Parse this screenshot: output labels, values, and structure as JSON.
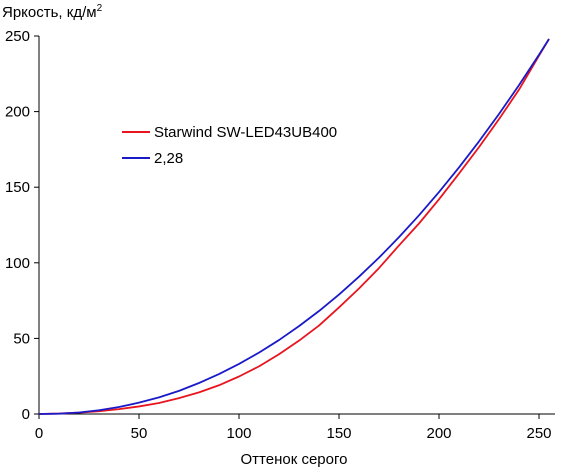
{
  "chart_data": {
    "type": "line",
    "ylabel": "Яркость, кд/м",
    "ylabel_superscript": "2",
    "xlabel": "Оттенок серого",
    "xlim": [
      0,
      255
    ],
    "ylim": [
      0,
      250
    ],
    "x_ticks": [
      "0",
      "50",
      "100",
      "150",
      "200",
      "250"
    ],
    "y_ticks": [
      "0",
      "50",
      "100",
      "150",
      "200",
      "250"
    ],
    "grid": false,
    "legend_position": "upper-left",
    "series": [
      {
        "name": "Starwind SW-LED43UB400",
        "color": "#e8141e",
        "x": [
          0,
          10,
          20,
          30,
          40,
          50,
          60,
          70,
          80,
          90,
          100,
          110,
          120,
          130,
          140,
          150,
          160,
          170,
          180,
          190,
          200,
          210,
          220,
          230,
          240,
          250,
          255
        ],
        "y": [
          0,
          0.3,
          0.9,
          1.8,
          3.2,
          5.0,
          7.3,
          10.5,
          14.3,
          19.0,
          24.8,
          31.5,
          39.5,
          48.5,
          58.5,
          70.5,
          83.0,
          96.5,
          111.5,
          126.0,
          142.0,
          159.0,
          176.5,
          195.0,
          214.5,
          237.0,
          248.0
        ]
      },
      {
        "name": "2,28",
        "color": "#1a1ac8",
        "x": [
          0,
          10,
          20,
          30,
          40,
          50,
          60,
          70,
          80,
          90,
          100,
          110,
          120,
          130,
          140,
          150,
          160,
          170,
          180,
          190,
          200,
          210,
          220,
          230,
          240,
          250,
          255
        ],
        "y": [
          0,
          0.2,
          1.0,
          2.5,
          4.6,
          7.5,
          11.0,
          15.3,
          20.5,
          26.4,
          33.1,
          40.6,
          48.9,
          58.1,
          68.1,
          79.0,
          90.8,
          103.4,
          117.0,
          131.4,
          146.8,
          163.1,
          180.3,
          198.4,
          217.5,
          237.6,
          248.0
        ]
      }
    ]
  }
}
